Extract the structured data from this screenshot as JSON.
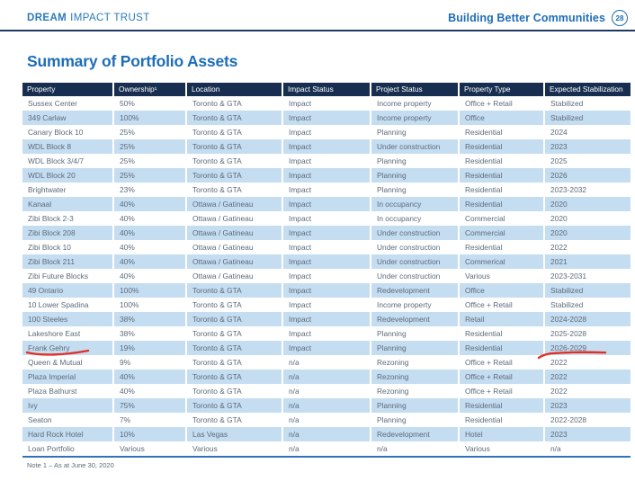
{
  "header": {
    "brand": {
      "dream": "DREAM",
      "rest": "IMPACT TRUST"
    },
    "tagline": "Building Better Communities",
    "page_number": "28"
  },
  "title": "Summary of Portfolio Assets",
  "table": {
    "columns": [
      "Property",
      "Ownership¹",
      "Location",
      "Impact Status",
      "Project Status",
      "Property Type",
      "Expected Stabilization"
    ],
    "rows": [
      [
        "Sussex Center",
        "50%",
        "Toronto & GTA",
        "Impact",
        "Income property",
        "Office + Retail",
        "Stabilized"
      ],
      [
        "349 Carlaw",
        "100%",
        "Toronto & GTA",
        "Impact",
        "Income property",
        "Office",
        "Stabilized"
      ],
      [
        "Canary Block 10",
        "25%",
        "Toronto & GTA",
        "Impact",
        "Planning",
        "Residential",
        "2024"
      ],
      [
        "WDL Block 8",
        "25%",
        "Toronto & GTA",
        "Impact",
        "Under construction",
        "Residential",
        "2023"
      ],
      [
        "WDL Block 3/4/7",
        "25%",
        "Toronto & GTA",
        "Impact",
        "Planning",
        "Residential",
        "2025"
      ],
      [
        "WDL Block 20",
        "25%",
        "Toronto & GTA",
        "Impact",
        "Planning",
        "Residential",
        "2026"
      ],
      [
        "Brightwater",
        "23%",
        "Toronto & GTA",
        "Impact",
        "Planning",
        "Residential",
        "2023-2032"
      ],
      [
        "Kanaal",
        "40%",
        "Ottawa / Gatineau",
        "Impact",
        "In occupancy",
        "Residential",
        "2020"
      ],
      [
        "Zibi Block 2-3",
        "40%",
        "Ottawa / Gatineau",
        "Impact",
        "In occupancy",
        "Commercial",
        "2020"
      ],
      [
        "Zibi Block 208",
        "40%",
        "Ottawa / Gatineau",
        "Impact",
        "Under construction",
        "Commercial",
        "2020"
      ],
      [
        "Zibi Block 10",
        "40%",
        "Ottawa / Gatineau",
        "Impact",
        "Under construction",
        "Residential",
        "2022"
      ],
      [
        "Zibi Block 211",
        "40%",
        "Ottawa / Gatineau",
        "Impact",
        "Under construction",
        "Commerical",
        "2021"
      ],
      [
        "Zibi Future Blocks",
        "40%",
        "Ottawa / Gatineau",
        "Impact",
        "Under construction",
        "Various",
        "2023-2031"
      ],
      [
        "49 Ontario",
        "100%",
        "Toronto & GTA",
        "Impact",
        "Redevelopment",
        "Office",
        "Stabilized"
      ],
      [
        "10 Lower Spadina",
        "100%",
        "Toronto & GTA",
        "Impact",
        "Income property",
        "Office + Retail",
        "Stabilized"
      ],
      [
        "100 Steeles",
        "38%",
        "Toronto & GTA",
        "Impact",
        "Redevelopment",
        "Retail",
        "2024-2028"
      ],
      [
        "Lakeshore East",
        "38%",
        "Toronto & GTA",
        "Impact",
        "Planning",
        "Residential",
        "2025-2028"
      ],
      [
        "Frank Gehry",
        "19%",
        "Toronto & GTA",
        "Impact",
        "Planning",
        "Residential",
        "2026-2029"
      ],
      [
        "Queen & Mutual",
        "9%",
        "Toronto & GTA",
        "n/a",
        "Rezoning",
        "Office + Retail",
        "2022"
      ],
      [
        "Plaza Imperial",
        "40%",
        "Toronto & GTA",
        "n/a",
        "Rezoning",
        "Office + Retail",
        "2022"
      ],
      [
        "Plaza Bathurst",
        "40%",
        "Toronto & GTA",
        "n/a",
        "Rezoning",
        "Office + Retail",
        "2022"
      ],
      [
        "Ivy",
        "75%",
        "Toronto & GTA",
        "n/a",
        "Planning",
        "Residential",
        "2023"
      ],
      [
        "Seaton",
        "7%",
        "Toronto & GTA",
        "n/a",
        "Planning",
        "Residential",
        "2022-2028"
      ],
      [
        "Hard Rock Hotel",
        "10%",
        "Las Vegas",
        "n/a",
        "Redevelopment",
        "Hotel",
        "2023"
      ],
      [
        "Loan Portfolio",
        "Various",
        "Various",
        "n/a",
        "n/a",
        "Various",
        "n/a"
      ]
    ]
  },
  "annotations": [
    {
      "name": "frank-gehry-underline",
      "target": "Frank Gehry"
    },
    {
      "name": "expected-stabilization-underline",
      "target": "2026-2029"
    }
  ],
  "footnote": "Note 1 –  As at June 30, 2020",
  "colors": {
    "brand_blue": "#2a7abc",
    "title_blue": "#1d6db8",
    "table_header_navy": "#172e50",
    "row_stripe_blue": "#c5ddf1",
    "body_text": "#5c6b78",
    "table_bottom_border": "#2e75b6",
    "annotation_red": "#e03127"
  }
}
